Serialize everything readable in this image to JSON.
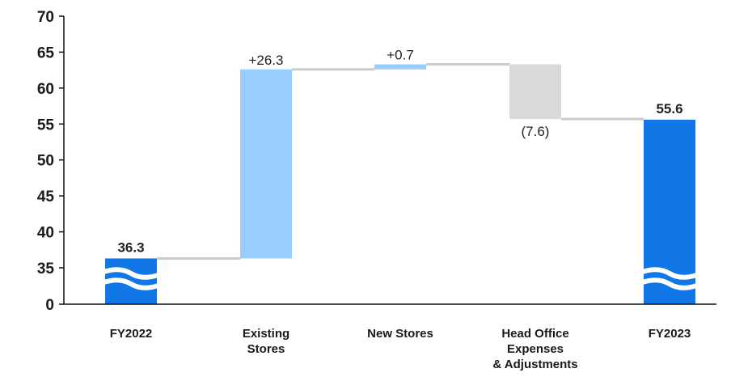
{
  "chart_data": {
    "type": "bar",
    "subtype": "waterfall",
    "categories": [
      [
        "FY2022"
      ],
      [
        "Existing",
        "Stores"
      ],
      [
        "New Stores"
      ],
      [
        "Head Office",
        "Expenses",
        "& Adjustments"
      ],
      [
        "FY2023"
      ]
    ],
    "bars": [
      {
        "kind": "total",
        "value": 36.3,
        "label": "36.3"
      },
      {
        "kind": "increase",
        "value": 26.3,
        "label": "+26.3"
      },
      {
        "kind": "increase",
        "value": 0.7,
        "label": "+0.7"
      },
      {
        "kind": "decrease",
        "value": -7.6,
        "label": "(7.6)"
      },
      {
        "kind": "total",
        "value": 55.6,
        "label": "55.6"
      }
    ],
    "y_ticks": [
      "70",
      "65",
      "60",
      "55",
      "50",
      "45",
      "40",
      "35",
      "0"
    ],
    "ylim": [
      30,
      70
    ],
    "axis_break": "between 0 and 35",
    "grid": false,
    "colors": {
      "total": "#1177e6",
      "increase": "#99ccff",
      "decrease": "#d9d9d9",
      "connector": "#cccccc",
      "axis": "#111111"
    }
  }
}
